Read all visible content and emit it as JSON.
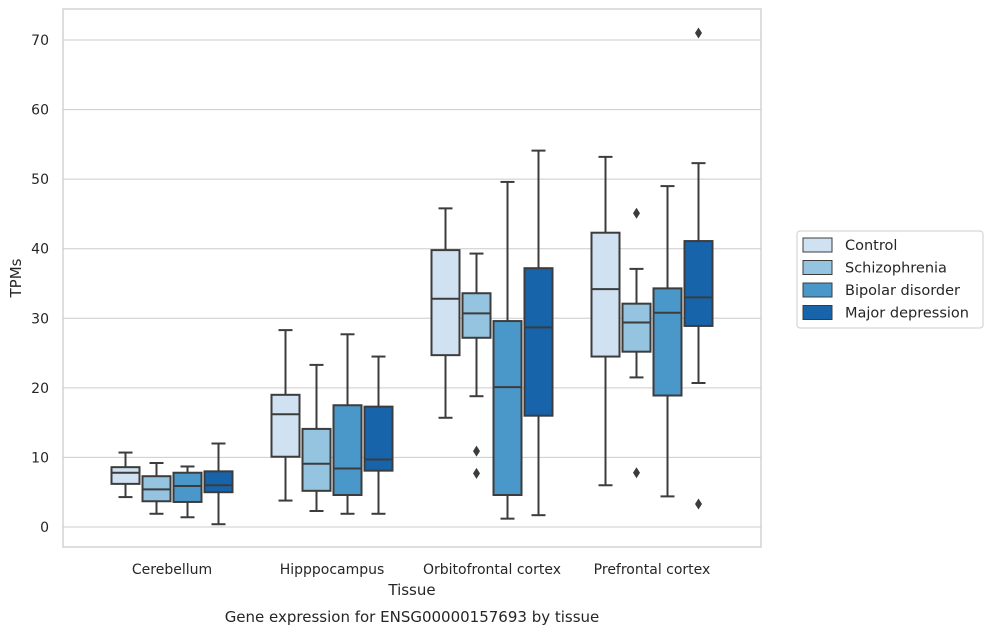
{
  "caption": "Gene expression for ENSG00000157693 by tissue",
  "chart_data": {
    "type": "box",
    "title": "",
    "xlabel": "Tissue",
    "ylabel": "TPMs",
    "ylim": [
      -3,
      74.5
    ],
    "yticks": [
      0,
      10,
      20,
      30,
      40,
      50,
      60,
      70
    ],
    "grid": "horizontal",
    "legend_position": "right",
    "categories": [
      "Cerebellum",
      "Hipppocampus",
      "Orbitofrontal cortex",
      "Prefrontal cortex"
    ],
    "series": [
      {
        "name": "Control",
        "color": "#d0e1f2",
        "boxes": [
          {
            "whislo": 4.3,
            "q1": 6.2,
            "med": 7.8,
            "q3": 8.6,
            "whishi": 10.7,
            "fliers": []
          },
          {
            "whislo": 3.8,
            "q1": 10.1,
            "med": 16.2,
            "q3": 19.0,
            "whishi": 28.3,
            "fliers": []
          },
          {
            "whislo": 15.7,
            "q1": 24.7,
            "med": 32.8,
            "q3": 39.8,
            "whishi": 45.8,
            "fliers": []
          },
          {
            "whislo": 6.0,
            "q1": 24.5,
            "med": 34.2,
            "q3": 42.3,
            "whishi": 53.2,
            "fliers": []
          }
        ]
      },
      {
        "name": "Schizophrenia",
        "color": "#94c4df",
        "boxes": [
          {
            "whislo": 1.9,
            "q1": 3.7,
            "med": 5.4,
            "q3": 7.3,
            "whishi": 9.2,
            "fliers": []
          },
          {
            "whislo": 2.3,
            "q1": 5.2,
            "med": 9.1,
            "q3": 14.1,
            "whishi": 23.3,
            "fliers": []
          },
          {
            "whislo": 18.8,
            "q1": 27.2,
            "med": 30.7,
            "q3": 33.6,
            "whishi": 39.3,
            "fliers": [
              10.9,
              7.7
            ]
          },
          {
            "whislo": 21.5,
            "q1": 25.2,
            "med": 29.4,
            "q3": 32.1,
            "whishi": 37.1,
            "fliers": [
              45.1,
              7.8
            ]
          }
        ]
      },
      {
        "name": "Bipolar disorder",
        "color": "#4a98c9",
        "boxes": [
          {
            "whislo": 1.4,
            "q1": 3.6,
            "med": 5.9,
            "q3": 7.8,
            "whishi": 8.7,
            "fliers": []
          },
          {
            "whislo": 1.9,
            "q1": 4.6,
            "med": 8.4,
            "q3": 17.5,
            "whishi": 27.7,
            "fliers": []
          },
          {
            "whislo": 1.2,
            "q1": 4.6,
            "med": 20.1,
            "q3": 29.6,
            "whishi": 49.6,
            "fliers": []
          },
          {
            "whislo": 4.4,
            "q1": 18.9,
            "med": 30.8,
            "q3": 34.3,
            "whishi": 49.0,
            "fliers": []
          }
        ]
      },
      {
        "name": "Major depression",
        "color": "#1764ab",
        "boxes": [
          {
            "whislo": 0.4,
            "q1": 5.0,
            "med": 6.0,
            "q3": 8.0,
            "whishi": 12.0,
            "fliers": []
          },
          {
            "whislo": 1.9,
            "q1": 8.1,
            "med": 9.7,
            "q3": 17.3,
            "whishi": 24.5,
            "fliers": []
          },
          {
            "whislo": 1.7,
            "q1": 16.0,
            "med": 28.7,
            "q3": 37.2,
            "whishi": 54.1,
            "fliers": []
          },
          {
            "whislo": 20.7,
            "q1": 28.9,
            "med": 33.0,
            "q3": 41.1,
            "whishi": 52.3,
            "fliers": [
              3.3,
              71.0
            ]
          }
        ]
      }
    ]
  },
  "colors": {
    "grid": "#cccccc",
    "frame": "#cccccc",
    "box_edge": "#3c3c3c",
    "text": "#262626"
  }
}
